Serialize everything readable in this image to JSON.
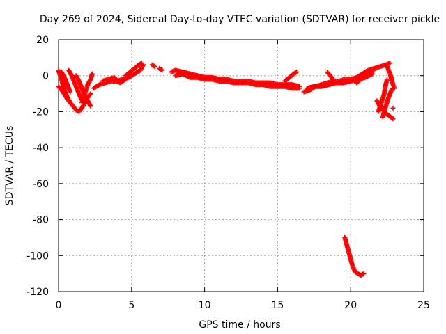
{
  "chart_data": {
    "type": "scatter",
    "title": "Day 269 of 2024, Sidereal Day-to-day VTEC variation (SDTVAR) for receiver pickle",
    "xlabel": "GPS time / hours",
    "ylabel": "SDTVAR / TECUs",
    "xlim": [
      0,
      25
    ],
    "ylim": [
      -120,
      20
    ],
    "xticks": [
      0,
      5,
      10,
      15,
      20,
      25
    ],
    "yticks": [
      20,
      0,
      -20,
      -40,
      -60,
      -80,
      -100,
      -120
    ],
    "grid": true,
    "marker": "+",
    "color": "#ff0000",
    "series": [
      {
        "name": "SDTVAR",
        "trace_segments": [
          [
            [
              0.0,
              3
            ],
            [
              0.2,
              -2
            ],
            [
              0.4,
              -8
            ],
            [
              0.6,
              -12
            ],
            [
              0.8,
              -15
            ],
            [
              1.0,
              -17
            ],
            [
              1.2,
              -19
            ],
            [
              1.4,
              -20
            ],
            [
              1.6,
              -18
            ],
            [
              1.8,
              -15
            ],
            [
              2.0,
              -12
            ],
            [
              2.2,
              -10
            ]
          ],
          [
            [
              0.0,
              -6
            ],
            [
              0.3,
              -9
            ],
            [
              0.6,
              -13
            ],
            [
              0.9,
              -16
            ],
            [
              1.2,
              -19
            ]
          ],
          [
            [
              0.2,
              2
            ],
            [
              0.4,
              -1
            ],
            [
              0.6,
              -5
            ],
            [
              0.8,
              -9
            ]
          ],
          [
            [
              0.7,
              3
            ],
            [
              0.9,
              0
            ],
            [
              1.1,
              -4
            ],
            [
              1.3,
              -8
            ],
            [
              1.5,
              -12
            ],
            [
              1.7,
              -15
            ]
          ],
          [
            [
              1.2,
              0
            ],
            [
              1.4,
              -3
            ],
            [
              1.6,
              -7
            ],
            [
              1.8,
              -11
            ],
            [
              2.0,
              -14
            ],
            [
              2.2,
              -17
            ]
          ],
          [
            [
              1.6,
              -15
            ],
            [
              1.8,
              -10
            ],
            [
              2.0,
              -5
            ],
            [
              2.2,
              -2
            ],
            [
              2.3,
              1
            ]
          ],
          [
            [
              2.4,
              -7
            ],
            [
              2.8,
              -5
            ],
            [
              3.2,
              -4
            ],
            [
              3.6,
              -3
            ],
            [
              4.0,
              -3
            ],
            [
              4.4,
              -2
            ],
            [
              4.8,
              -1
            ],
            [
              5.2,
              1
            ],
            [
              5.6,
              3
            ],
            [
              5.8,
              6
            ]
          ],
          [
            [
              3.0,
              -3
            ],
            [
              3.4,
              -2
            ],
            [
              3.8,
              -1
            ],
            [
              4.2,
              -4
            ],
            [
              4.6,
              -2
            ]
          ],
          [
            [
              4.6,
              0
            ],
            [
              4.9,
              2
            ],
            [
              5.2,
              4
            ],
            [
              5.5,
              6
            ],
            [
              5.7,
              7
            ]
          ],
          [
            [
              6.4,
              6
            ],
            [
              6.6,
              5
            ]
          ],
          [
            [
              6.9,
              4
            ],
            [
              7.1,
              3
            ]
          ],
          [
            [
              7.7,
              2
            ],
            [
              8.0,
              3
            ],
            [
              8.5,
              2
            ],
            [
              9.0,
              1
            ],
            [
              9.5,
              0
            ],
            [
              10.0,
              -1
            ],
            [
              10.5,
              -1
            ],
            [
              11.0,
              -2
            ],
            [
              11.5,
              -2
            ],
            [
              12.0,
              -3
            ],
            [
              12.5,
              -3
            ],
            [
              13.0,
              -3
            ],
            [
              13.5,
              -4
            ],
            [
              14.0,
              -4
            ],
            [
              14.5,
              -4
            ],
            [
              15.0,
              -5
            ],
            [
              15.5,
              -5
            ],
            [
              16.0,
              -5
            ],
            [
              16.5,
              -6
            ]
          ],
          [
            [
              8.0,
              0
            ],
            [
              8.5,
              1
            ],
            [
              9.0,
              -1
            ],
            [
              9.5,
              -1
            ],
            [
              10.0,
              -2
            ],
            [
              10.5,
              -2
            ],
            [
              11.0,
              -3
            ],
            [
              11.5,
              -3
            ],
            [
              12.0,
              -4
            ],
            [
              12.5,
              -4
            ],
            [
              13.0,
              -4
            ],
            [
              13.5,
              -5
            ],
            [
              14.0,
              -5
            ],
            [
              14.5,
              -6
            ],
            [
              15.0,
              -6
            ],
            [
              15.5,
              -6
            ],
            [
              16.0,
              -7
            ],
            [
              16.5,
              -7
            ]
          ],
          [
            [
              15.5,
              -3
            ],
            [
              15.8,
              -1
            ],
            [
              16.1,
              1
            ],
            [
              16.3,
              2
            ]
          ],
          [
            [
              16.8,
              -9
            ],
            [
              17.2,
              -8
            ],
            [
              17.6,
              -6
            ],
            [
              18.0,
              -5
            ],
            [
              18.4,
              -4
            ],
            [
              18.8,
              -3
            ],
            [
              19.2,
              -3
            ],
            [
              19.6,
              -2
            ],
            [
              20.0,
              -2
            ],
            [
              20.4,
              -1
            ],
            [
              20.8,
              1
            ],
            [
              21.2,
              3
            ],
            [
              21.6,
              4
            ],
            [
              22.0,
              5
            ],
            [
              22.4,
              6
            ],
            [
              22.7,
              7
            ]
          ],
          [
            [
              17.0,
              -7
            ],
            [
              17.5,
              -6
            ],
            [
              18.0,
              -6
            ],
            [
              18.5,
              -5
            ],
            [
              19.0,
              -4
            ],
            [
              19.5,
              -4
            ],
            [
              20.0,
              -3
            ],
            [
              20.5,
              -2
            ],
            [
              21.0,
              -1
            ],
            [
              21.5,
              1
            ]
          ],
          [
            [
              18.4,
              2
            ],
            [
              18.6,
              0
            ],
            [
              18.8,
              -2
            ]
          ],
          [
            [
              20.4,
              -4
            ],
            [
              20.7,
              -2
            ],
            [
              21.0,
              0
            ],
            [
              21.3,
              2
            ],
            [
              21.6,
              3
            ]
          ],
          [
            [
              21.8,
              -14
            ],
            [
              22.0,
              -17
            ],
            [
              22.2,
              -19
            ],
            [
              22.4,
              -21
            ],
            [
              22.6,
              -22
            ],
            [
              22.9,
              -24
            ]
          ],
          [
            [
              21.9,
              -20
            ],
            [
              22.1,
              -15
            ],
            [
              22.3,
              -10
            ],
            [
              22.4,
              -5
            ],
            [
              22.5,
              -2
            ]
          ],
          [
            [
              22.2,
              -23
            ],
            [
              22.4,
              -17
            ],
            [
              22.6,
              -12
            ],
            [
              22.8,
              -8
            ],
            [
              22.9,
              -7
            ]
          ],
          [
            [
              22.5,
              5
            ],
            [
              22.6,
              3
            ],
            [
              22.7,
              1
            ],
            [
              22.8,
              -2
            ],
            [
              22.9,
              -5
            ],
            [
              23.0,
              -7
            ]
          ],
          [
            [
              22.9,
              -18
            ]
          ],
          [
            [
              19.6,
              -90
            ],
            [
              19.7,
              -93
            ],
            [
              19.8,
              -96
            ],
            [
              19.9,
              -99
            ],
            [
              20.0,
              -102
            ],
            [
              20.1,
              -105
            ],
            [
              20.2,
              -107
            ],
            [
              20.3,
              -109
            ],
            [
              20.5,
              -110
            ],
            [
              20.7,
              -111
            ],
            [
              20.9,
              -110
            ]
          ]
        ]
      }
    ]
  }
}
